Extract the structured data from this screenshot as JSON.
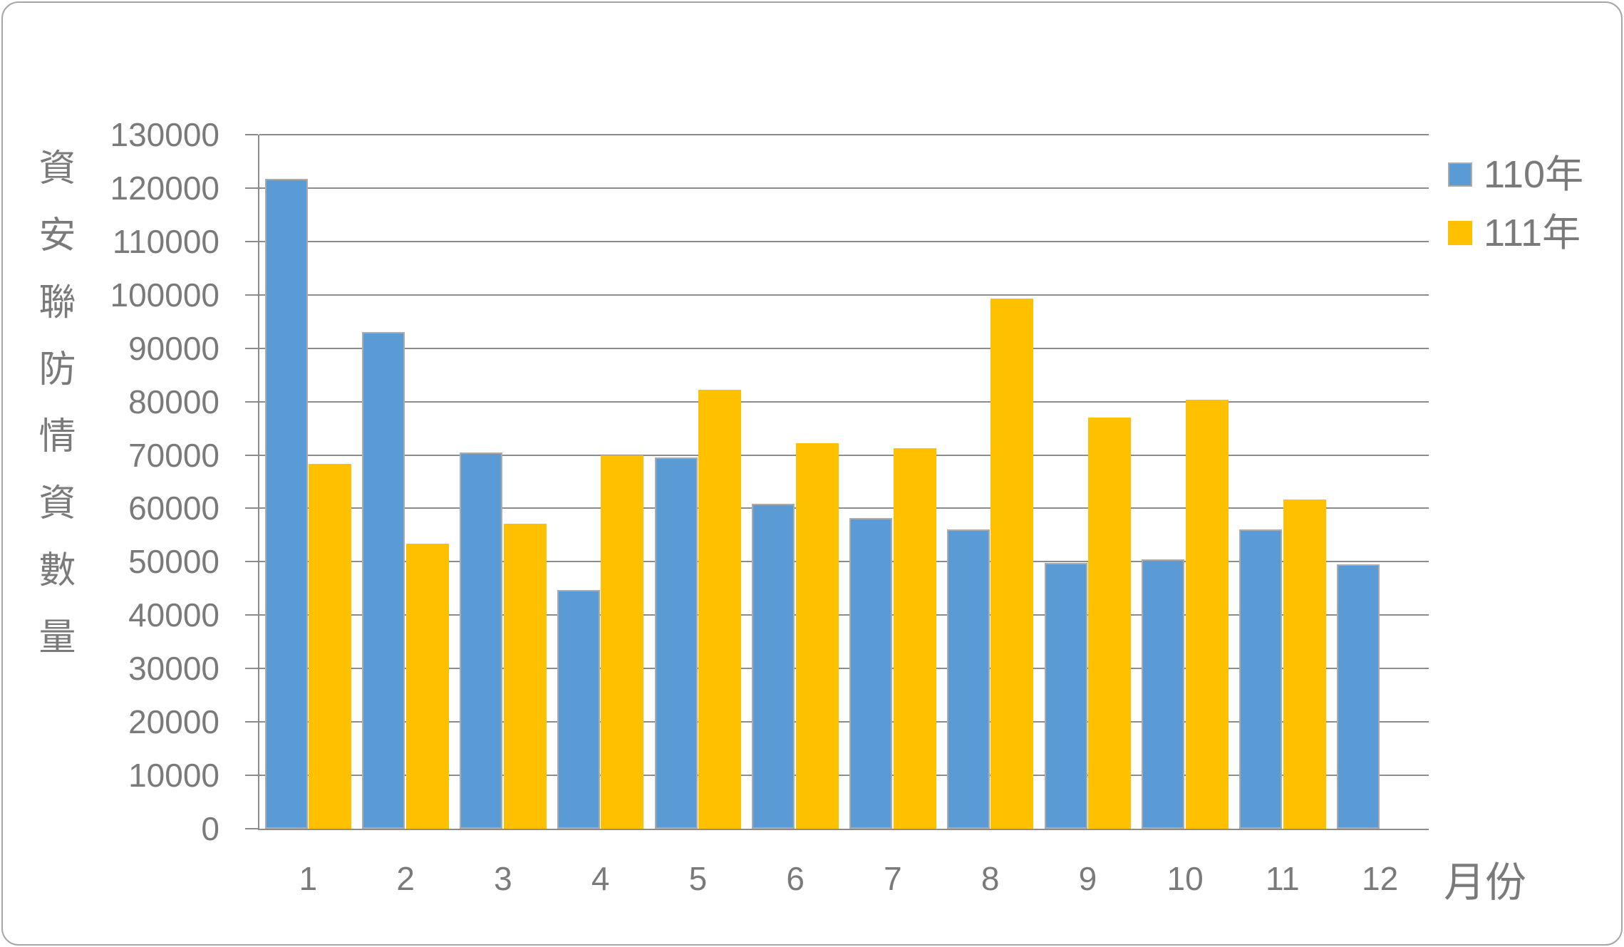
{
  "chart_data": {
    "type": "bar",
    "title": "",
    "ylabel": "資安聯防情資數量",
    "xlabel": "月份",
    "categories": [
      "1",
      "2",
      "3",
      "4",
      "5",
      "6",
      "7",
      "8",
      "9",
      "10",
      "11",
      "12"
    ],
    "series": [
      {
        "name": "110年",
        "color": "#5B9BD5",
        "border_color": "#ABABAB",
        "values": [
          121700,
          93000,
          70500,
          44700,
          69500,
          60800,
          58200,
          56000,
          49800,
          50500,
          56100,
          49500
        ]
      },
      {
        "name": "111年",
        "color": "#FFC000",
        "border_color": null,
        "values": [
          68300,
          53400,
          57100,
          70000,
          82200,
          72200,
          71300,
          99300,
          77000,
          80400,
          61600,
          null
        ]
      }
    ],
    "ylim": [
      0,
      130000
    ],
    "ytick_step": 10000,
    "grid": true,
    "legend_position": "right"
  },
  "colors": {
    "grid": "#8C8C8C",
    "text": "#7A7A7A",
    "frame": "#A6A6A6"
  }
}
